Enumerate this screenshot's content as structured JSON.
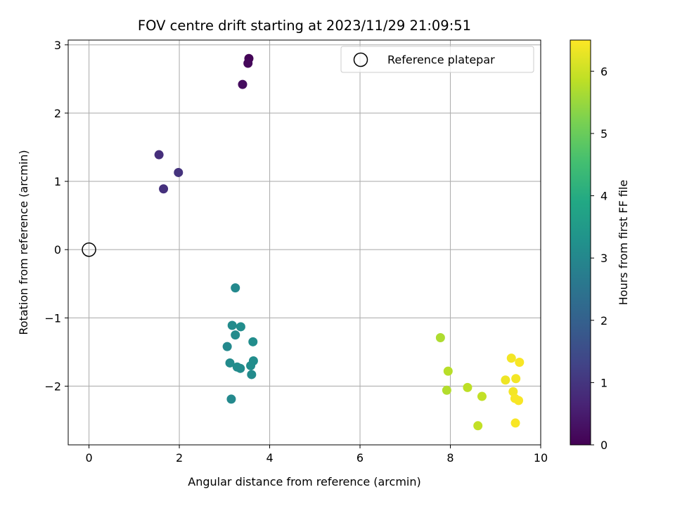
{
  "chart_data": {
    "type": "scatter",
    "title": "FOV centre drift starting at 2023/11/29 21:09:51",
    "xlabel": "Angular distance from reference (arcmin)",
    "ylabel": "Rotation from reference (arcmin)",
    "xlim": [
      -0.46,
      10.0
    ],
    "ylim": [
      -2.86,
      3.07
    ],
    "xticks": [
      0,
      2,
      4,
      6,
      8,
      10
    ],
    "xtick_labels": [
      "0",
      "2",
      "4",
      "6",
      "8",
      "10"
    ],
    "yticks": [
      -2,
      -1,
      0,
      1,
      2,
      3
    ],
    "ytick_labels": [
      "−2",
      "−1",
      "0",
      "1",
      "2",
      "3"
    ],
    "grid": true,
    "legend": {
      "position": "upper-right",
      "entries": [
        "Reference platepar"
      ]
    },
    "reference_point": {
      "label": "Reference platepar",
      "x": 0,
      "y": 0
    },
    "colorbar": {
      "label": "Hours from first FF file",
      "colormap": "viridis",
      "range": [
        0,
        6.5
      ],
      "ticks": [
        0,
        1,
        2,
        3,
        4,
        5,
        6
      ],
      "tick_labels": [
        "0",
        "1",
        "2",
        "3",
        "4",
        "5",
        "6"
      ]
    },
    "points": [
      {
        "x": 3.54,
        "y": 2.8,
        "h": 0.05
      },
      {
        "x": 3.52,
        "y": 2.73,
        "h": 0.12
      },
      {
        "x": 3.4,
        "y": 2.42,
        "h": 0.2
      },
      {
        "x": 1.55,
        "y": 1.39,
        "h": 0.85
      },
      {
        "x": 1.98,
        "y": 1.13,
        "h": 0.95
      },
      {
        "x": 1.65,
        "y": 0.89,
        "h": 0.9
      },
      {
        "x": 3.24,
        "y": -0.56,
        "h": 3.05
      },
      {
        "x": 3.17,
        "y": -1.11,
        "h": 3.1
      },
      {
        "x": 3.36,
        "y": -1.13,
        "h": 3.15
      },
      {
        "x": 3.24,
        "y": -1.25,
        "h": 3.1
      },
      {
        "x": 3.63,
        "y": -1.35,
        "h": 3.15
      },
      {
        "x": 3.06,
        "y": -1.42,
        "h": 3.05
      },
      {
        "x": 3.12,
        "y": -1.66,
        "h": 3.1
      },
      {
        "x": 3.28,
        "y": -1.72,
        "h": 3.15
      },
      {
        "x": 3.35,
        "y": -1.74,
        "h": 3.1
      },
      {
        "x": 3.58,
        "y": -1.7,
        "h": 3.15
      },
      {
        "x": 3.64,
        "y": -1.63,
        "h": 3.15
      },
      {
        "x": 3.6,
        "y": -1.83,
        "h": 3.1
      },
      {
        "x": 3.15,
        "y": -2.19,
        "h": 3.05
      },
      {
        "x": 7.78,
        "y": -1.29,
        "h": 5.7
      },
      {
        "x": 7.95,
        "y": -1.78,
        "h": 5.8
      },
      {
        "x": 7.92,
        "y": -2.06,
        "h": 5.75
      },
      {
        "x": 8.38,
        "y": -2.02,
        "h": 5.85
      },
      {
        "x": 8.7,
        "y": -2.15,
        "h": 5.9
      },
      {
        "x": 8.61,
        "y": -2.58,
        "h": 5.9
      },
      {
        "x": 9.35,
        "y": -1.59,
        "h": 6.4
      },
      {
        "x": 9.22,
        "y": -1.91,
        "h": 6.35
      },
      {
        "x": 9.45,
        "y": -1.89,
        "h": 6.4
      },
      {
        "x": 9.53,
        "y": -1.65,
        "h": 6.45
      },
      {
        "x": 9.39,
        "y": -2.08,
        "h": 6.4
      },
      {
        "x": 9.43,
        "y": -2.18,
        "h": 6.45
      },
      {
        "x": 9.51,
        "y": -2.21,
        "h": 6.45
      },
      {
        "x": 9.44,
        "y": -2.54,
        "h": 6.45
      }
    ]
  }
}
